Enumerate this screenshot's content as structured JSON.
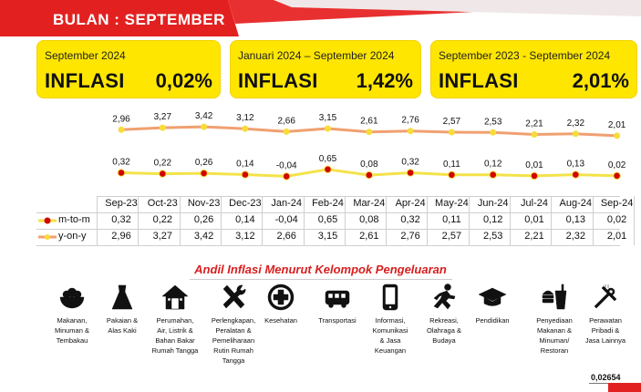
{
  "header": {
    "title": "BULAN : SEPTEMBER"
  },
  "cards": [
    {
      "period": "September 2024",
      "label": "INFLASI",
      "value": "0,02%"
    },
    {
      "period": "Januari 2024 – September 2024",
      "label": "INFLASI",
      "value": "1,42%"
    },
    {
      "period": "September 2023 - September 2024",
      "label": "INFLASI",
      "value": "2,01%"
    }
  ],
  "colors": {
    "accent": "#e22020",
    "card": "#ffe600",
    "yoy_line": "#f0a070",
    "mtom_line": "#f4e24a",
    "mtom_marker": "#d40000",
    "yoy_marker": "#f7dc3a"
  },
  "chart_data": {
    "type": "line",
    "categories": [
      "Sep-23",
      "Oct-23",
      "Nov-23",
      "Dec-23",
      "Jan-24",
      "Feb-24",
      "Mar-24",
      "Apr-24",
      "May-24",
      "Jun-24",
      "Jul-24",
      "Aug-24",
      "Sep-24"
    ],
    "series": [
      {
        "name": "m-to-m",
        "values": [
          0.32,
          0.22,
          0.26,
          0.14,
          -0.04,
          0.65,
          0.08,
          0.32,
          0.11,
          0.12,
          0.01,
          0.13,
          0.02
        ],
        "labels": [
          "0,32",
          "0,22",
          "0,26",
          "0,14",
          "-0,04",
          "0,65",
          "0,08",
          "0,32",
          "0,11",
          "0,12",
          "0,01",
          "0,13",
          "0,02"
        ]
      },
      {
        "name": "y-on-y",
        "values": [
          2.96,
          3.27,
          3.42,
          3.12,
          2.66,
          3.15,
          2.61,
          2.76,
          2.57,
          2.53,
          2.21,
          2.32,
          2.01
        ],
        "labels": [
          "2,96",
          "3,27",
          "3,42",
          "3,12",
          "2,66",
          "3,15",
          "2,61",
          "2,76",
          "2,57",
          "2,53",
          "2,21",
          "2,32",
          "2,01"
        ]
      }
    ],
    "legend": "table-bottom",
    "grid": false
  },
  "table": {
    "rows": [
      {
        "label": "m-to-m",
        "values": [
          "0,32",
          "0,22",
          "0,26",
          "0,14",
          "-0,04",
          "0,65",
          "0,08",
          "0,32",
          "0,11",
          "0,12",
          "0,01",
          "0,13",
          "0,02"
        ]
      },
      {
        "label": "y-on-y",
        "values": [
          "2,96",
          "3,27",
          "3,42",
          "3,12",
          "2,66",
          "3,15",
          "2,61",
          "2,76",
          "2,57",
          "2,53",
          "2,21",
          "2,32",
          "2,01"
        ]
      }
    ]
  },
  "andil": {
    "title": "Andil Inflasi Menurut Kelompok Pengeluaran",
    "categories": [
      {
        "icon": "food-bowl-icon",
        "lines": [
          "Makanan,",
          "Minuman &",
          "Tembakau"
        ]
      },
      {
        "icon": "dress-icon",
        "lines": [
          "Pakaian &",
          "Alas Kaki"
        ]
      },
      {
        "icon": "house-icon",
        "lines": [
          "Perumahan,",
          "Air, Listrik &",
          "Bahan Bakar",
          "Rumah Tangga"
        ]
      },
      {
        "icon": "tools-icon",
        "lines": [
          "Perlengkapan,",
          "Peralatan &",
          "Pemeliharaan",
          "Rutin Rumah",
          "Tangga"
        ]
      },
      {
        "icon": "medical-cross-icon",
        "lines": [
          "Kesehatan"
        ]
      },
      {
        "icon": "bus-icon",
        "lines": [
          "Transportasi"
        ]
      },
      {
        "icon": "phone-icon",
        "lines": [
          "Informasi,",
          "Komunikasi",
          "& Jasa",
          "Keuangan"
        ]
      },
      {
        "icon": "runner-icon",
        "lines": [
          "Rekreasi,",
          "Olahraga &",
          "Budaya"
        ]
      },
      {
        "icon": "graduation-cap-icon",
        "lines": [
          "Pendidikan"
        ]
      },
      {
        "icon": "fastfood-icon",
        "lines": [
          "Penyediaan",
          "Makanan &",
          "Minuman/",
          "Restoran"
        ]
      },
      {
        "icon": "comb-scissors-icon",
        "lines": [
          "Perawatan",
          "Pribadi &",
          "Jasa Lainnya"
        ]
      }
    ],
    "footer_value": "0,02654"
  }
}
